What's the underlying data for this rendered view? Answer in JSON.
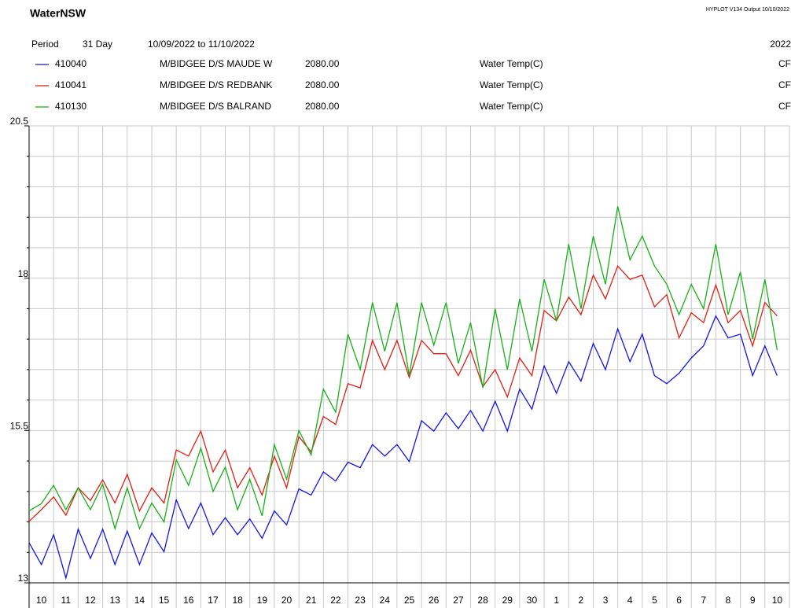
{
  "chart_data": {
    "type": "line",
    "title": "WaterNSW",
    "program": "HYPLOT V134  Output 10/10/2022",
    "period_label": "Period",
    "period": "31 Day",
    "date_range": "10/09/2022  to  11/10/2022",
    "year": "2022",
    "xlim": [
      0,
      31
    ],
    "xgrid": [
      0,
      1,
      2,
      3,
      4,
      5,
      6,
      7,
      8,
      9,
      10,
      11,
      12,
      13,
      14,
      15,
      16,
      17,
      18,
      19,
      20,
      21,
      22,
      23,
      24,
      25,
      26,
      27,
      28,
      29,
      30,
      31
    ],
    "xticks": [
      {
        "value": 0.5,
        "label": "10"
      },
      {
        "value": 1.5,
        "label": "11"
      },
      {
        "value": 2.5,
        "label": "12"
      },
      {
        "value": 3.5,
        "label": "13"
      },
      {
        "value": 4.5,
        "label": "14"
      },
      {
        "value": 5.5,
        "label": "15"
      },
      {
        "value": 6.5,
        "label": "16"
      },
      {
        "value": 7.5,
        "label": "17"
      },
      {
        "value": 8.5,
        "label": "18"
      },
      {
        "value": 9.5,
        "label": "19"
      },
      {
        "value": 10.5,
        "label": "20"
      },
      {
        "value": 11.5,
        "label": "21"
      },
      {
        "value": 12.5,
        "label": "22"
      },
      {
        "value": 13.5,
        "label": "23"
      },
      {
        "value": 14.5,
        "label": "24"
      },
      {
        "value": 15.5,
        "label": "25"
      },
      {
        "value": 16.5,
        "label": "26"
      },
      {
        "value": 17.5,
        "label": "27"
      },
      {
        "value": 18.5,
        "label": "28"
      },
      {
        "value": 19.5,
        "label": "29"
      },
      {
        "value": 20.5,
        "label": "30"
      },
      {
        "value": 21.5,
        "label": "1"
      },
      {
        "value": 22.5,
        "label": "2"
      },
      {
        "value": 23.5,
        "label": "3"
      },
      {
        "value": 24.5,
        "label": "4"
      },
      {
        "value": 25.5,
        "label": "5"
      },
      {
        "value": 26.5,
        "label": "6"
      },
      {
        "value": 27.5,
        "label": "7"
      },
      {
        "value": 28.5,
        "label": "8"
      },
      {
        "value": 29.5,
        "label": "9"
      },
      {
        "value": 30.5,
        "label": "10"
      }
    ],
    "ylim": [
      13,
      20.5
    ],
    "yticks": [
      13,
      15.5,
      18,
      20.5
    ],
    "yminor": [
      13.5,
      14,
      14.5,
      15,
      16,
      16.5,
      17,
      17.5,
      18.5,
      19,
      19.5,
      20
    ],
    "grid": true,
    "x": [
      0,
      0.5,
      1,
      1.5,
      2,
      2.5,
      3,
      3.5,
      4,
      4.5,
      5,
      5.5,
      6,
      6.5,
      7,
      7.5,
      8,
      8.5,
      9,
      9.5,
      10,
      10.5,
      11,
      11.5,
      12,
      12.5,
      13,
      13.5,
      14,
      14.5,
      15,
      15.5,
      16,
      16.5,
      17,
      17.5,
      18,
      18.5,
      19,
      19.5,
      20,
      20.5,
      21,
      21.5,
      22,
      22.5,
      23,
      23.5,
      24,
      24.5,
      25,
      25.5,
      26,
      26.5,
      27,
      27.5,
      28,
      28.5,
      29,
      29.5,
      30,
      30.5
    ],
    "series": [
      {
        "name": "410040",
        "station": "M/BIDGEE D/S MAUDE W",
        "code": "2080.00",
        "variable": "Water Temp(C)",
        "qualifier": "CF",
        "color": "#1414e6",
        "values": [
          13.66,
          13.3,
          13.79,
          13.08,
          13.88,
          13.4,
          13.88,
          13.3,
          13.85,
          13.3,
          13.82,
          13.51,
          14.36,
          13.89,
          14.31,
          13.79,
          14.07,
          13.79,
          14.05,
          13.73,
          14.18,
          13.95,
          14.54,
          14.44,
          14.82,
          14.67,
          14.98,
          14.89,
          15.27,
          15.08,
          15.27,
          14.99,
          15.66,
          15.49,
          15.79,
          15.53,
          15.83,
          15.49,
          15.98,
          15.49,
          16.18,
          15.85,
          16.56,
          16.11,
          16.63,
          16.31,
          16.93,
          16.5,
          17.17,
          16.63,
          17.08,
          16.4,
          16.27,
          16.44,
          16.69,
          16.89,
          17.38,
          17.02,
          17.08,
          16.4,
          16.89,
          16.4
        ]
      },
      {
        "name": "410041",
        "station": "M/BIDGEE D/S REDBANK",
        "code": "2080.00",
        "variable": "Water Temp(C)",
        "qualifier": "CF",
        "color": "#e01e12",
        "values": [
          14.01,
          14.2,
          14.41,
          14.11,
          14.56,
          14.35,
          14.69,
          14.31,
          14.78,
          14.18,
          14.56,
          14.31,
          15.18,
          15.08,
          15.49,
          14.82,
          15.18,
          14.56,
          14.89,
          14.44,
          15.08,
          14.56,
          15.4,
          15.15,
          15.73,
          15.6,
          16.27,
          16.2,
          16.98,
          16.5,
          16.98,
          16.37,
          16.98,
          16.76,
          16.76,
          16.4,
          16.82,
          16.22,
          16.5,
          16.05,
          16.69,
          16.4,
          17.47,
          17.3,
          17.69,
          17.4,
          18.05,
          17.66,
          18.2,
          17.98,
          18.05,
          17.53,
          17.73,
          17.02,
          17.43,
          17.27,
          17.89,
          17.27,
          17.47,
          16.89,
          17.6,
          17.38
        ]
      },
      {
        "name": "410130",
        "station": "M/BIDGEE D/S BALRAND",
        "code": "2080.00",
        "variable": "Water Temp(C)",
        "qualifier": "CF",
        "color": "#18b018",
        "values": [
          14.18,
          14.3,
          14.6,
          14.2,
          14.56,
          14.2,
          14.62,
          13.89,
          14.56,
          13.89,
          14.31,
          14.0,
          15.02,
          14.6,
          15.21,
          14.5,
          14.9,
          14.2,
          14.7,
          14.1,
          15.27,
          14.7,
          15.5,
          15.1,
          16.18,
          15.8,
          17.08,
          16.5,
          17.6,
          16.8,
          17.6,
          16.4,
          17.6,
          16.9,
          17.6,
          16.6,
          17.27,
          16.2,
          17.5,
          16.5,
          17.66,
          16.8,
          17.98,
          17.3,
          18.56,
          17.5,
          18.69,
          17.9,
          19.18,
          18.3,
          18.69,
          18.2,
          17.9,
          17.4,
          17.9,
          17.5,
          18.56,
          17.4,
          18.1,
          17.0,
          17.98,
          16.82
        ]
      }
    ]
  }
}
